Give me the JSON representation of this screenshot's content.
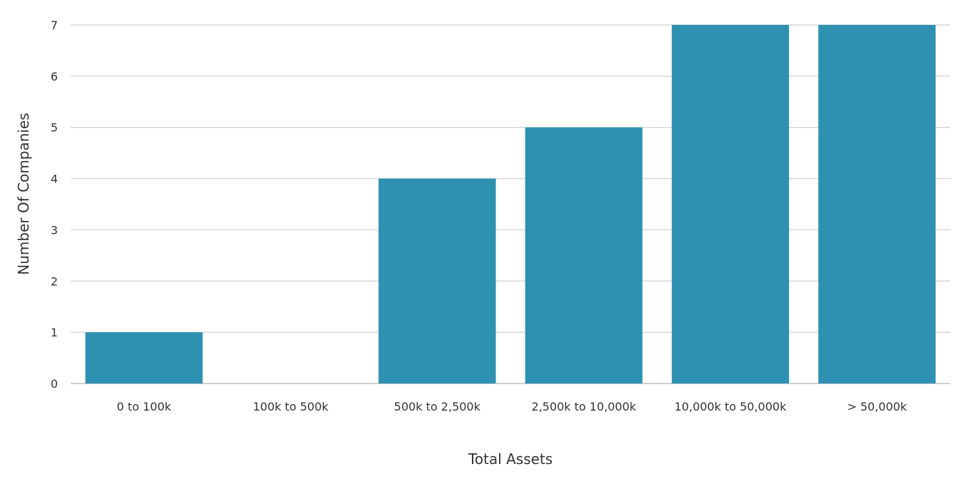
{
  "chart_data": {
    "type": "bar",
    "categories": [
      "0 to 100k",
      "100k to 500k",
      "500k to 2,500k",
      "2,500k to 10,000k",
      "10,000k to 50,000k",
      "> 50,000k"
    ],
    "values": [
      1,
      0,
      4,
      5,
      7,
      7
    ],
    "xlabel": "Total Assets",
    "ylabel": "Number Of Companies",
    "ylim": [
      0,
      7
    ],
    "yticks": [
      0,
      1,
      2,
      3,
      4,
      5,
      6,
      7
    ],
    "grid": true,
    "legend": "none",
    "colors": {
      "bar": "#2e91b2",
      "grid": "#cfcfcf",
      "text": "#333333"
    }
  }
}
